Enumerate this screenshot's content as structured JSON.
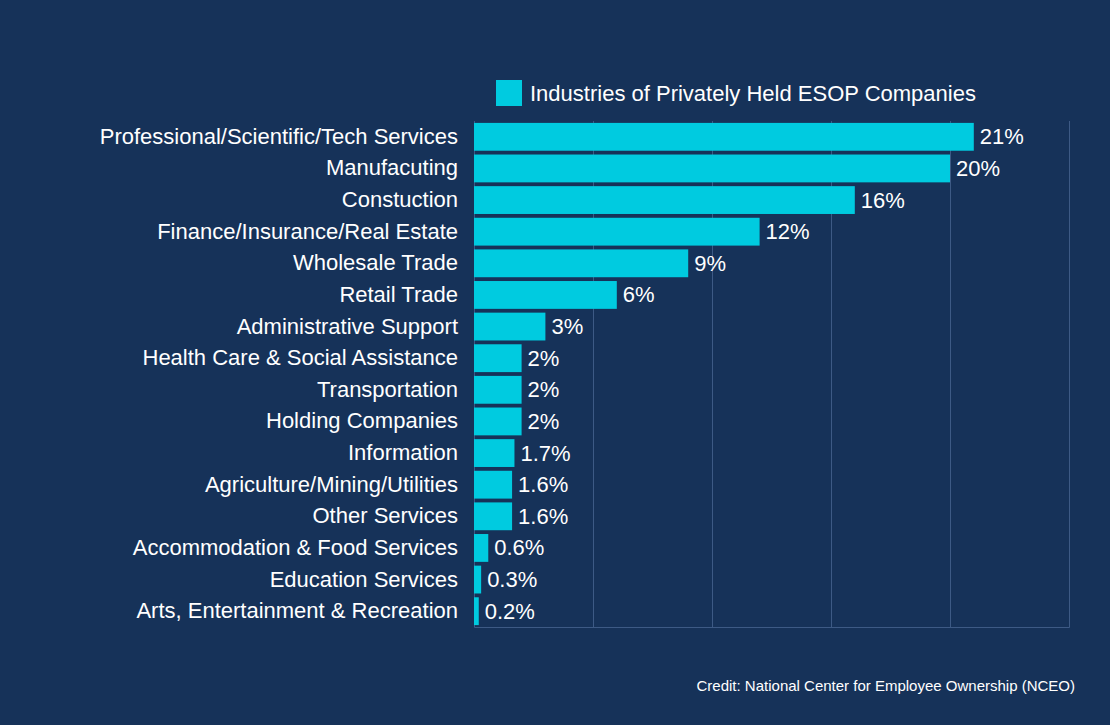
{
  "chart_data": {
    "type": "bar",
    "orientation": "horizontal",
    "categories": [
      "Professional/Scientific/Tech Services",
      "Manufacuting",
      "Constuction",
      "Finance/Insurance/Real Estate",
      "Wholesale Trade",
      "Retail Trade",
      "Administrative Support",
      "Health Care & Social Assistance",
      "Transportation",
      "Holding Companies",
      "Information",
      "Agriculture/Mining/Utilities",
      "Other Services",
      "Accommodation & Food Services",
      "Education Services",
      "Arts, Entertainment & Recreation"
    ],
    "series": [
      {
        "name": "Industries of Privately Held ESOP Companies",
        "color": "#00cbe0",
        "values": [
          21,
          20,
          16,
          12,
          9,
          6,
          3,
          2,
          2,
          2,
          1.7,
          1.6,
          1.6,
          0.6,
          0.3,
          0.2
        ],
        "value_labels": [
          "21%",
          "20%",
          "16%",
          "12%",
          "9%",
          "6%",
          "3%",
          "2%",
          "2%",
          "2%",
          "1.7%",
          "1.6%",
          "1.6%",
          "0.6%",
          "0.3%",
          "0.2%"
        ]
      }
    ],
    "xlim": [
      0,
      25
    ],
    "xticks": [
      0,
      5,
      10,
      15,
      20,
      25
    ],
    "grid": true,
    "legend": "top",
    "data_labels": true,
    "tick_labels": "y",
    "annotations": [
      "Credit: National Center for Employee Ownership (NCEO)"
    ]
  }
}
